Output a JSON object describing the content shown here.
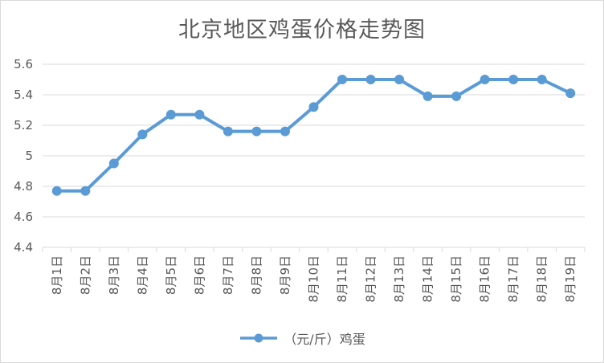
{
  "chart_data": {
    "type": "line",
    "title": "北京地区鸡蛋价格走势图",
    "xlabel": "",
    "ylabel": "",
    "categories": [
      "8月1日",
      "8月2日",
      "8月3日",
      "8月4日",
      "8月5日",
      "8月6日",
      "8月7日",
      "8月8日",
      "8月9日",
      "8月10日",
      "8月11日",
      "8月12日",
      "8月13日",
      "8月14日",
      "8月15日",
      "8月16日",
      "8月17日",
      "8月18日",
      "8月19日"
    ],
    "series": [
      {
        "name": "（元/斤）鸡蛋",
        "color": "#5b9bd5",
        "values": [
          4.77,
          4.77,
          4.95,
          5.14,
          5.27,
          5.27,
          5.16,
          5.16,
          5.16,
          5.32,
          5.5,
          5.5,
          5.5,
          5.39,
          5.39,
          5.5,
          5.5,
          5.5,
          5.41
        ]
      }
    ],
    "ylim": [
      4.4,
      5.6
    ],
    "yticks": [
      "4.4",
      "4.6",
      "4.8",
      "5",
      "5.2",
      "5.4",
      "5.6"
    ],
    "grid": true,
    "legend": "bottom"
  }
}
